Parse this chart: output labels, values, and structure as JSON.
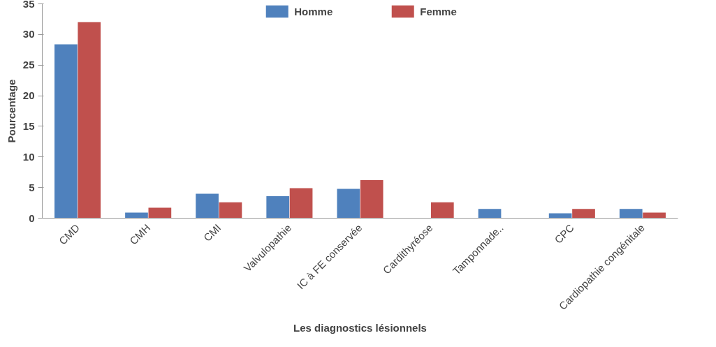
{
  "chart_data": {
    "type": "bar",
    "xlabel": "Les diagnostics lésionnels",
    "ylabel": "Pourcentage",
    "categories": [
      "CMD",
      "CMH",
      "CMI",
      "Valvulopathie",
      "IC à FE conservée",
      "Cardithyréose",
      "Tamponnade..",
      "CPC",
      "Cardiopathie congénitale"
    ],
    "series": [
      {
        "name": "Homme",
        "color": "#4f81bd",
        "values": [
          28.4,
          0.9,
          4.0,
          3.6,
          4.8,
          null,
          1.5,
          0.8,
          1.5
        ]
      },
      {
        "name": "Femme",
        "color": "#c0504d",
        "values": [
          32,
          1.7,
          2.6,
          4.9,
          6.2,
          2.6,
          0,
          1.5,
          0.9
        ]
      }
    ],
    "ylim": [
      0,
      35
    ],
    "yticks": [
      0,
      5,
      10,
      15,
      20,
      25,
      30,
      35
    ],
    "grid": false,
    "legend": "top"
  }
}
